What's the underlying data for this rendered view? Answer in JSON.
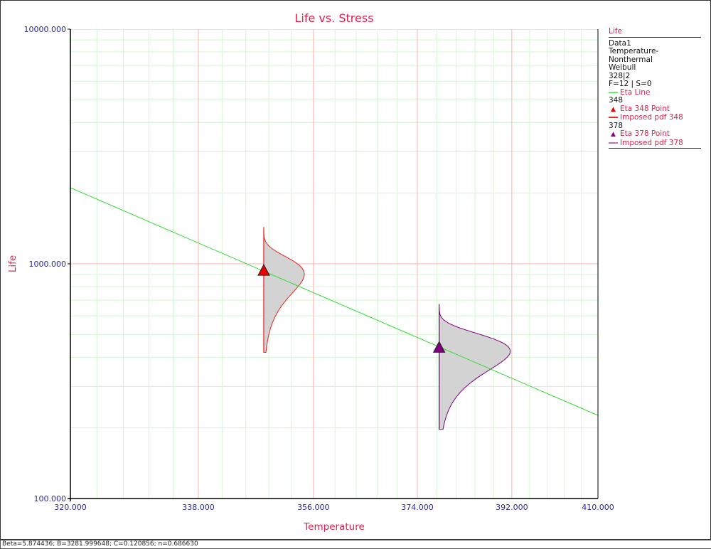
{
  "chart_data": {
    "type": "line",
    "title": "Life vs. Stress",
    "xlabel": "Temperature",
    "ylabel": "Life",
    "x_scale": "reciprocal",
    "y_scale": "log",
    "xlim": [
      320,
      410
    ],
    "ylim": [
      100,
      10000
    ],
    "x_ticks": [
      "320.000",
      "338.000",
      "356.000",
      "374.000",
      "392.000",
      "410.000"
    ],
    "y_ticks": [
      "100.000",
      "1000.000",
      "10000.000"
    ],
    "x_tick_values": [
      320,
      338,
      356,
      374,
      392,
      410
    ],
    "y_tick_values": [
      100,
      1000,
      10000
    ],
    "grid": true,
    "eta_line": {
      "name": "Eta Line",
      "color": "#33dd33",
      "x": [
        320,
        410
      ],
      "y": [
        2110,
        226
      ]
    },
    "points": [
      {
        "name": "Eta 348 Point",
        "stress": 348,
        "life": 932,
        "color": "#ee0000"
      },
      {
        "name": "Eta 378 Point",
        "stress": 378,
        "life": 438,
        "color": "#800080"
      }
    ],
    "pdfs": [
      {
        "name": "Imposed pdf 348",
        "stress": 348,
        "eta": 932,
        "beta": 5.874436,
        "color": "#ee2222"
      },
      {
        "name": "Imposed pdf 378",
        "stress": 378,
        "eta": 438,
        "beta": 5.874436,
        "color": "#800080"
      }
    ],
    "legend_placement": "right"
  },
  "legend": {
    "header": "Life",
    "lines": [
      "Data1",
      "Temperature-Nonthermal",
      "Weibull",
      "328|2",
      "F=12 | S=0"
    ],
    "eta_line": "Eta Line",
    "group1": "348",
    "eta348": "Eta 348 Point",
    "pdf348": "Imposed pdf 348",
    "group2": "378",
    "eta378": "Eta 378 Point",
    "pdf378": "Imposed pdf 378"
  },
  "status": "Beta=5.874436; B=3281.999648; C=0.120856; n=0.686630",
  "colors": {
    "title": "#e0204c",
    "tick_label": "#2a2a9a",
    "major_grid": "#ffb0b0",
    "minor_grid": "#d4f5d4"
  }
}
